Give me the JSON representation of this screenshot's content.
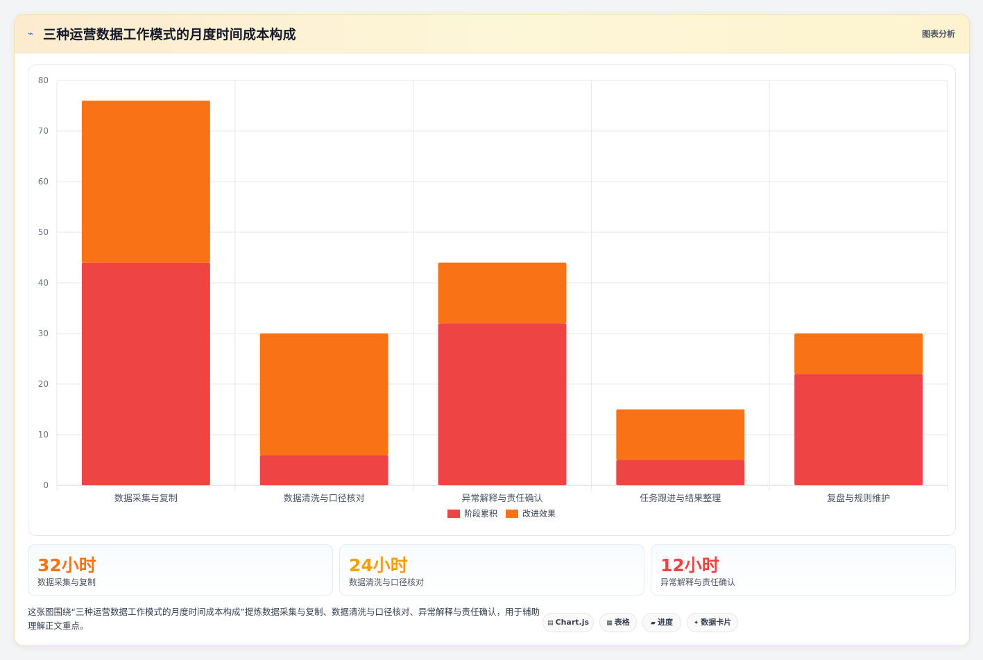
{
  "header": {
    "logo_icon": "sparkline-icon",
    "title": "三种运营数据工作模式的月度时间成本构成",
    "tag": "图表分析"
  },
  "chart_data": {
    "type": "bar",
    "stacked": true,
    "categories": [
      "数据采集与复制",
      "数据清洗与口径核对",
      "异常解释与责任确认",
      "任务跟进与结果整理",
      "复盘与规则维护"
    ],
    "series": [
      {
        "name": "阶段累积",
        "color": "#ef4444",
        "values": [
          44,
          6,
          32,
          5,
          22
        ]
      },
      {
        "name": "改进效果",
        "color": "#f97316",
        "values": [
          32,
          24,
          12,
          10,
          8
        ]
      }
    ],
    "ylim": [
      0,
      80
    ],
    "yticks": [
      0,
      10,
      20,
      30,
      40,
      50,
      60,
      70,
      80
    ],
    "grid": true,
    "legend": "bottom"
  },
  "stats": [
    {
      "value": "32小时",
      "label": "数据采集与复制",
      "color": "#f97316"
    },
    {
      "value": "24小时",
      "label": "数据清洗与口径核对",
      "color": "#f59e0b"
    },
    {
      "value": "12小时",
      "label": "异常解释与责任确认",
      "color": "#ef4444"
    }
  ],
  "description": "这张图围绕“三种运营数据工作模式的月度时间成本构成”提炼数据采集与复制、数据清洗与口径核对、异常解释与责任确认，用于辅助理解正文重点。",
  "chips": [
    {
      "icon": "▤",
      "label": "Chart.js"
    },
    {
      "icon": "▦",
      "label": "表格"
    },
    {
      "icon": "▰",
      "label": "进度"
    },
    {
      "icon": "✦",
      "label": "数据卡片"
    }
  ]
}
